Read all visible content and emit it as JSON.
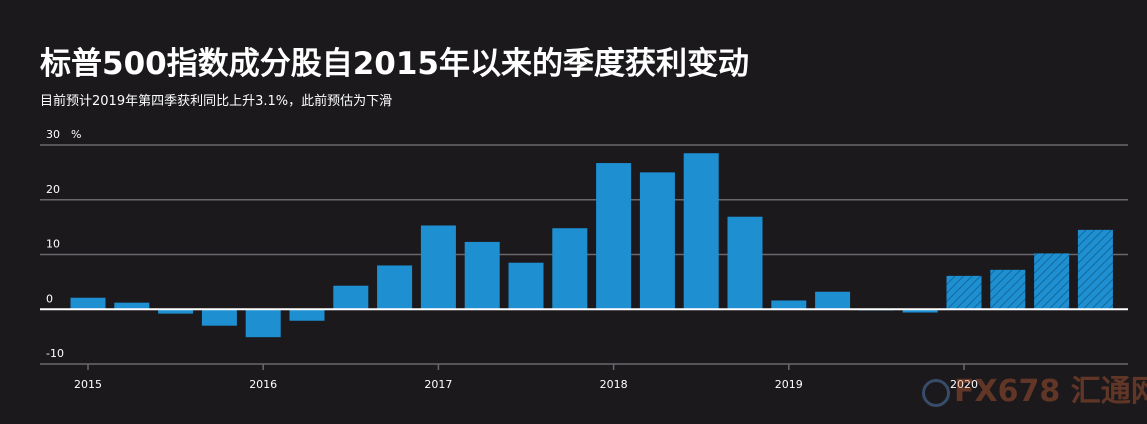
{
  "header": {
    "title": "标普500指数成分股自2015年以来的季度获利变动",
    "subtitle": "目前预计2019年第四季获利同比上升3.1%，此前预估为下滑"
  },
  "watermark": {
    "text": "FX678 汇通网"
  },
  "colors": {
    "bar": "#1e90d2",
    "grid": "#6a686c",
    "zero": "#ffffff",
    "background": "#1b191c"
  },
  "chart_data": {
    "type": "bar",
    "unit": "%",
    "ylim": [
      -10,
      30
    ],
    "yticks": [
      {
        "value": 30,
        "label": "30"
      },
      {
        "value": 20,
        "label": "20"
      },
      {
        "value": 10,
        "label": "10"
      },
      {
        "value": 0,
        "label": "0"
      },
      {
        "value": -10,
        "label": "-10"
      }
    ],
    "xticks": [
      "2015",
      "2016",
      "2017",
      "2018",
      "2019",
      "2020"
    ],
    "bars": [
      {
        "q": "2015 Q1",
        "value": 2.1,
        "estimate": false
      },
      {
        "q": "2015 Q2",
        "value": 1.2,
        "estimate": false
      },
      {
        "q": "2015 Q3",
        "value": -0.8,
        "estimate": false
      },
      {
        "q": "2015 Q4",
        "value": -3.0,
        "estimate": false
      },
      {
        "q": "2016 Q1",
        "value": -5.1,
        "estimate": false
      },
      {
        "q": "2016 Q2",
        "value": -2.1,
        "estimate": false
      },
      {
        "q": "2016 Q3",
        "value": 4.3,
        "estimate": false
      },
      {
        "q": "2016 Q4",
        "value": 8.0,
        "estimate": false
      },
      {
        "q": "2017 Q1",
        "value": 15.3,
        "estimate": false
      },
      {
        "q": "2017 Q2",
        "value": 12.3,
        "estimate": false
      },
      {
        "q": "2017 Q3",
        "value": 8.5,
        "estimate": false
      },
      {
        "q": "2017 Q4",
        "value": 14.8,
        "estimate": false
      },
      {
        "q": "2018 Q1",
        "value": 26.7,
        "estimate": false
      },
      {
        "q": "2018 Q2",
        "value": 25.0,
        "estimate": false
      },
      {
        "q": "2018 Q3",
        "value": 28.5,
        "estimate": false
      },
      {
        "q": "2018 Q4",
        "value": 16.9,
        "estimate": false
      },
      {
        "q": "2019 Q1",
        "value": 1.6,
        "estimate": false
      },
      {
        "q": "2019 Q2",
        "value": 3.2,
        "estimate": false
      },
      {
        "q": "2019 Q3",
        "value": -0.2,
        "estimate": false
      },
      {
        "q": "2019 Q4",
        "value": -0.6,
        "estimate": false
      },
      {
        "q": "2020 Q1",
        "value": 6.1,
        "estimate": true
      },
      {
        "q": "2020 Q2",
        "value": 7.2,
        "estimate": true
      },
      {
        "q": "2020 Q3",
        "value": 10.2,
        "estimate": true
      },
      {
        "q": "2020 Q4",
        "value": 14.5,
        "estimate": true
      }
    ]
  }
}
